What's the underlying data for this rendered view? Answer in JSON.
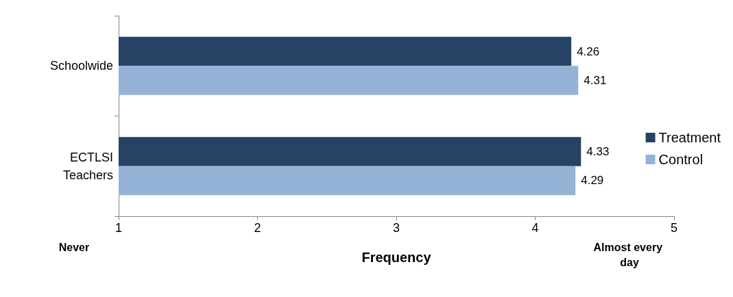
{
  "chart_data": {
    "type": "bar",
    "orientation": "horizontal",
    "xlabel": "Frequency",
    "categories": [
      "Schoolwide",
      "ECTLSI\nTeachers"
    ],
    "series": [
      {
        "name": "Treatment",
        "color": "#264264",
        "values": [
          4.26,
          4.33
        ]
      },
      {
        "name": "Control",
        "color": "#95b3d7",
        "values": [
          4.31,
          4.29
        ]
      }
    ],
    "xlim": [
      1,
      5
    ],
    "xticks": [
      1,
      2,
      3,
      4,
      5
    ],
    "data_labels": true,
    "legend": "right",
    "grid": false,
    "annotations": [
      "Never",
      "Almost every day"
    ]
  }
}
